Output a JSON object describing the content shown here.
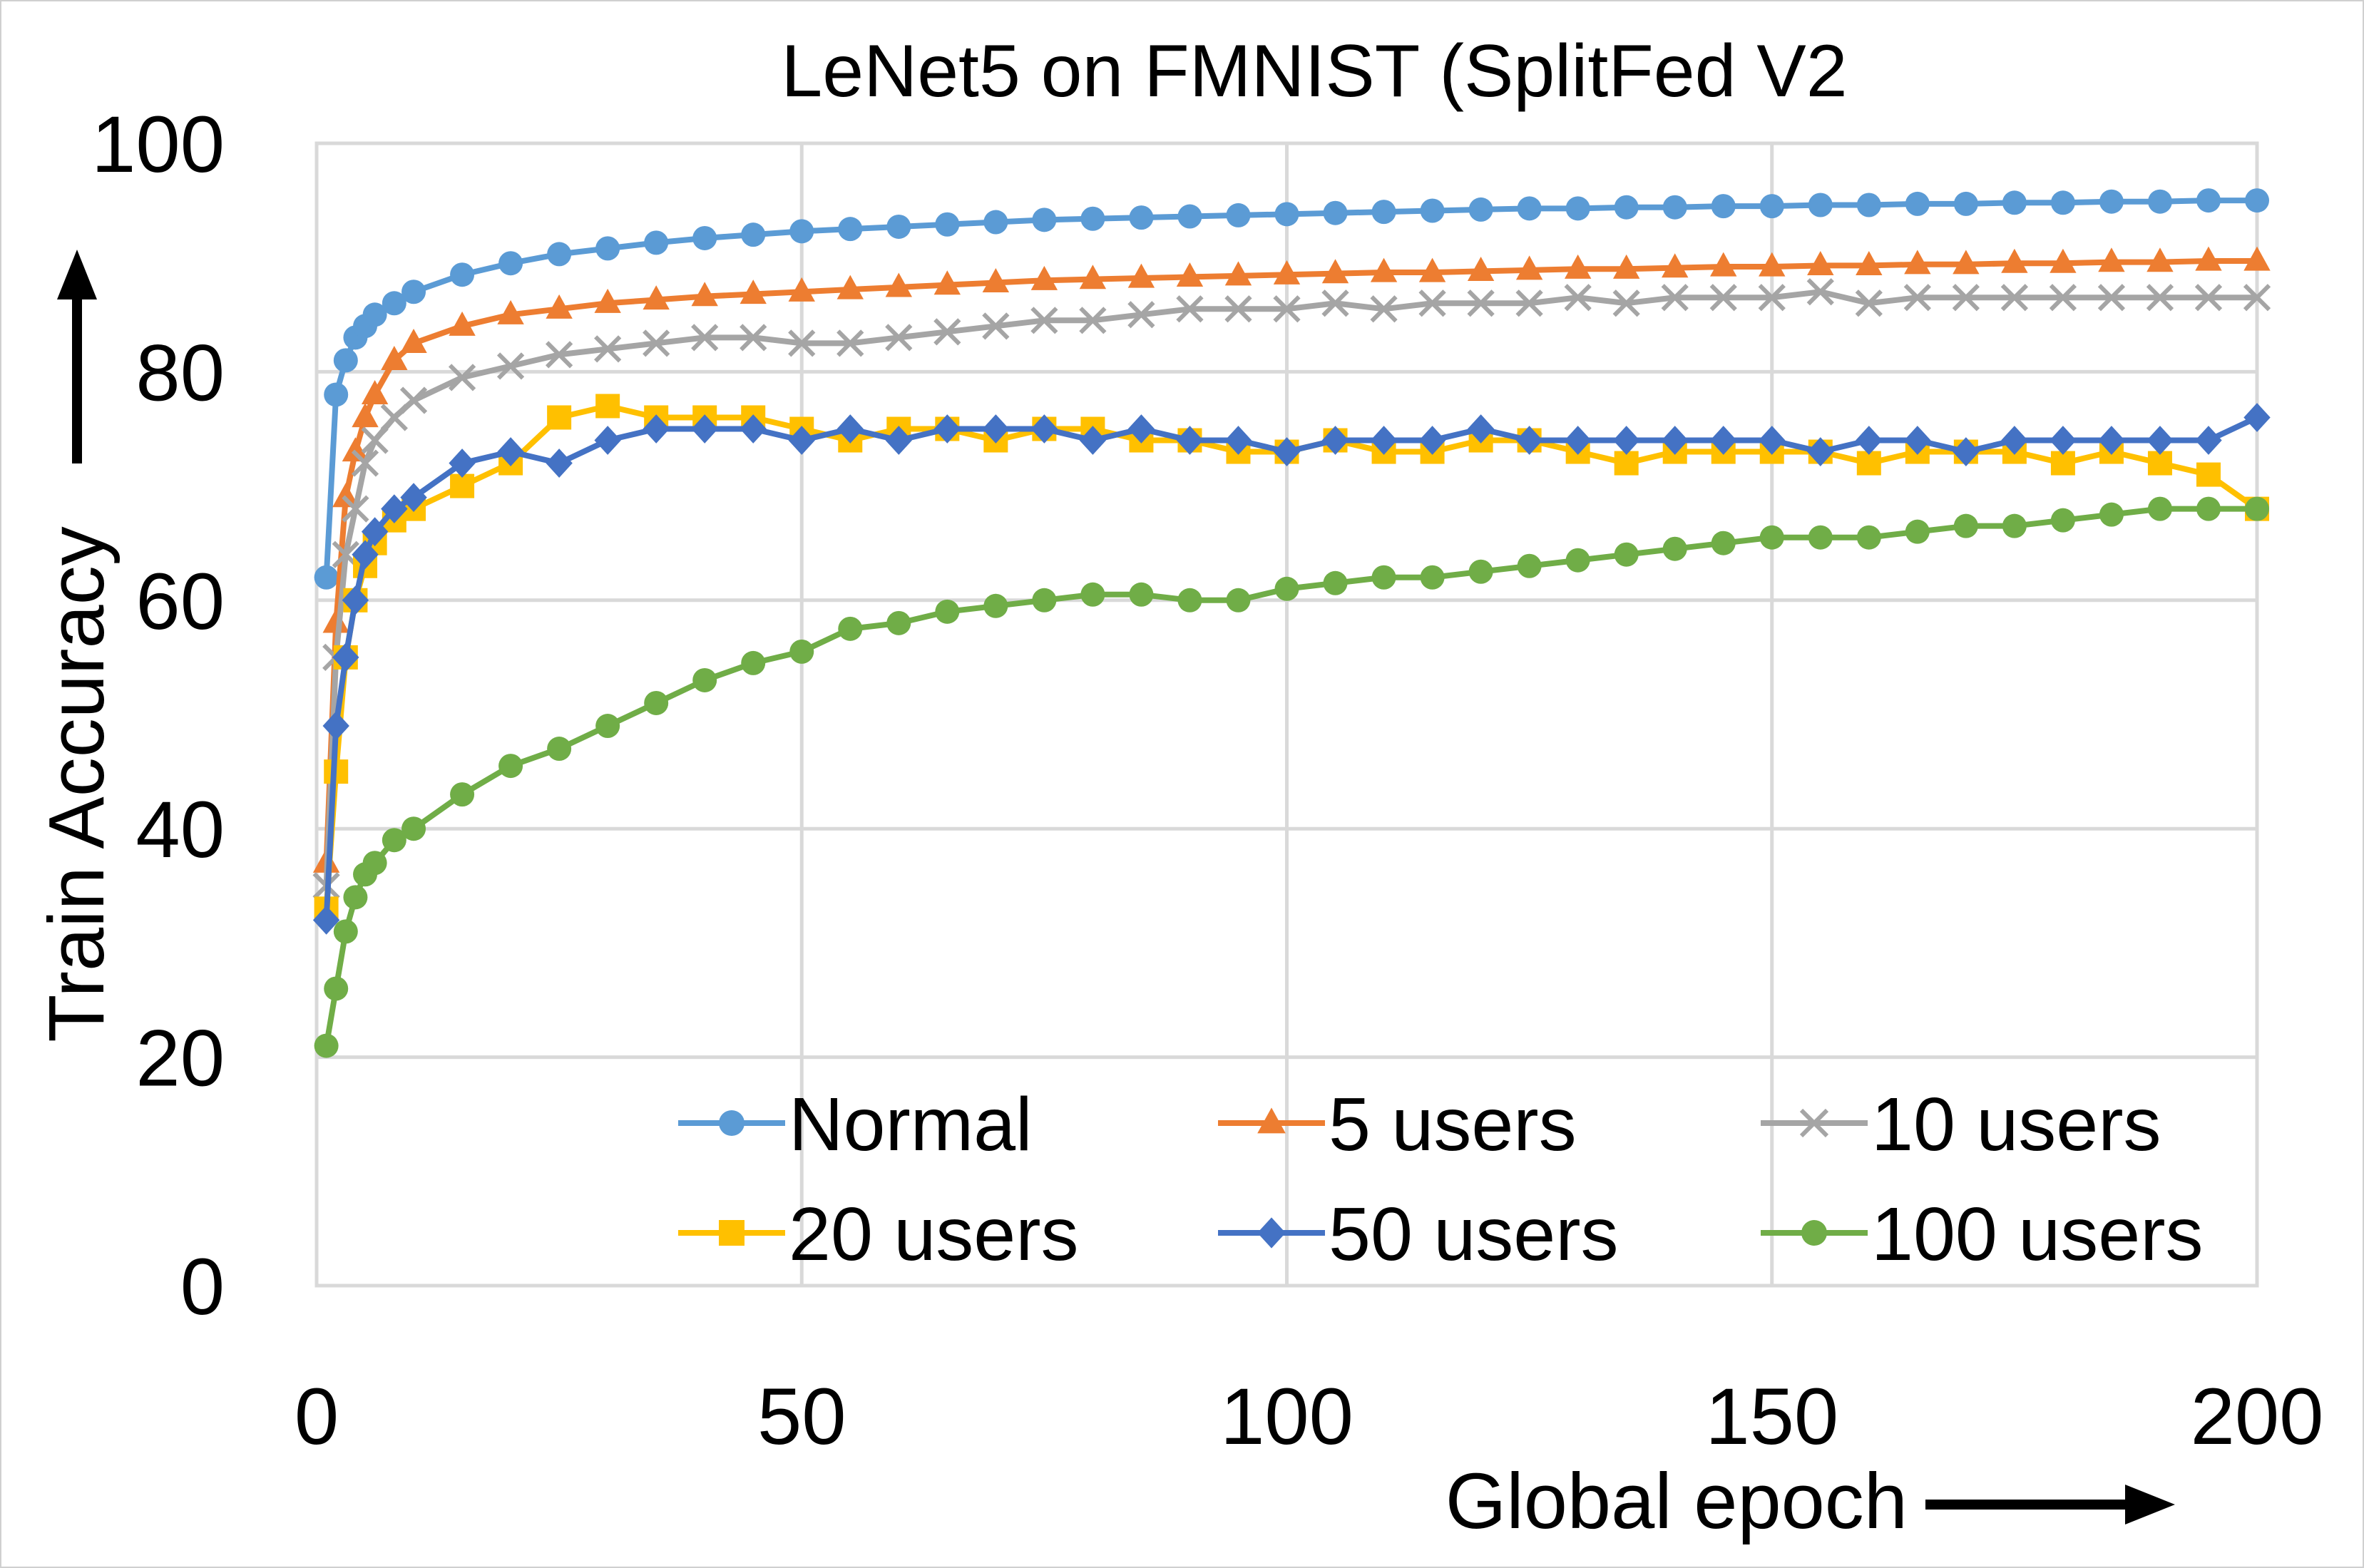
{
  "chart_data": {
    "type": "line",
    "title": "LeNet5 on FMNIST (SplitFed V2",
    "xlabel": "Global epoch",
    "ylabel": "Train Accuracy",
    "xlim": [
      0,
      200
    ],
    "ylim": [
      0,
      100
    ],
    "xticks": [
      0,
      50,
      100,
      150,
      200
    ],
    "yticks": [
      0,
      20,
      40,
      60,
      80,
      100
    ],
    "grid": true,
    "legend_position": "bottom-right inside",
    "x": [
      1,
      2,
      3,
      4,
      5,
      6,
      8,
      10,
      15,
      20,
      25,
      30,
      35,
      40,
      45,
      50,
      55,
      60,
      65,
      70,
      75,
      80,
      85,
      90,
      95,
      100,
      105,
      110,
      115,
      120,
      125,
      130,
      135,
      140,
      145,
      150,
      155,
      160,
      165,
      170,
      175,
      180,
      185,
      190,
      195,
      200
    ],
    "series": [
      {
        "name": "Normal",
        "color": "#5b9bd5",
        "marker": "circle",
        "values": [
          62,
          78,
          81,
          83,
          84,
          85,
          86,
          87,
          88.5,
          89.5,
          90.3,
          90.8,
          91.3,
          91.7,
          92,
          92.3,
          92.5,
          92.7,
          92.9,
          93.1,
          93.3,
          93.4,
          93.5,
          93.6,
          93.7,
          93.8,
          93.9,
          94,
          94.1,
          94.2,
          94.3,
          94.3,
          94.4,
          94.4,
          94.5,
          94.5,
          94.6,
          94.6,
          94.7,
          94.7,
          94.8,
          94.8,
          94.9,
          94.9,
          95,
          95
        ]
      },
      {
        "name": "5 users",
        "color": "#ed7d31",
        "marker": "triangle",
        "values": [
          37,
          58,
          69,
          73,
          76,
          78,
          81,
          82.5,
          84,
          85,
          85.5,
          86,
          86.3,
          86.6,
          86.8,
          87,
          87.2,
          87.4,
          87.6,
          87.8,
          88,
          88.1,
          88.2,
          88.3,
          88.4,
          88.5,
          88.6,
          88.7,
          88.7,
          88.8,
          88.9,
          89,
          89,
          89.1,
          89.2,
          89.2,
          89.3,
          89.3,
          89.4,
          89.4,
          89.5,
          89.5,
          89.6,
          89.6,
          89.7,
          89.7
        ]
      },
      {
        "name": "10 users",
        "color": "#a5a5a5",
        "marker": "x",
        "values": [
          35,
          55,
          64,
          68,
          72,
          74,
          76,
          77.5,
          79.5,
          80.5,
          81.5,
          82,
          82.5,
          83,
          83,
          82.5,
          82.5,
          83,
          83.5,
          84,
          84.5,
          84.5,
          85,
          85.5,
          85.5,
          85.5,
          86,
          85.5,
          86,
          86,
          86,
          86.5,
          86,
          86.5,
          86.5,
          86.5,
          87,
          86,
          86.5,
          86.5,
          86.5,
          86.5,
          86.5,
          86.5,
          86.5,
          86.5
        ]
      },
      {
        "name": "20 users",
        "color": "#ffc000",
        "marker": "square",
        "values": [
          33,
          45,
          55,
          60,
          63,
          65,
          67,
          68,
          70,
          72,
          76,
          77,
          76,
          76,
          76,
          75,
          74,
          75,
          75,
          74,
          75,
          75,
          74,
          74,
          73,
          73,
          74,
          73,
          73,
          74,
          74,
          73,
          72,
          73,
          73,
          73,
          73,
          72,
          73,
          73,
          73,
          72,
          73,
          72,
          71,
          68
        ]
      },
      {
        "name": "50 users",
        "color": "#4472c4",
        "marker": "diamond",
        "values": [
          32,
          49,
          55,
          60,
          64,
          66,
          68,
          69,
          72,
          73,
          72,
          74,
          75,
          75,
          75,
          74,
          75,
          74,
          75,
          75,
          75,
          74,
          75,
          74,
          74,
          73,
          74,
          74,
          74,
          75,
          74,
          74,
          74,
          74,
          74,
          74,
          73,
          74,
          74,
          73,
          74,
          74,
          74,
          74,
          74,
          76
        ]
      },
      {
        "name": "100 users",
        "color": "#70ad47",
        "marker": "circle",
        "values": [
          21,
          26,
          31,
          34,
          36,
          37,
          39,
          40,
          43,
          45.5,
          47,
          49,
          51,
          53,
          54.5,
          55.5,
          57.5,
          58,
          59,
          59.5,
          60,
          60.5,
          60.5,
          60,
          60,
          61,
          61.5,
          62,
          62,
          62.5,
          63,
          63.5,
          64,
          64.5,
          65,
          65.5,
          65.5,
          65.5,
          66,
          66.5,
          66.5,
          67,
          67.5,
          68,
          68,
          68
        ]
      }
    ]
  }
}
